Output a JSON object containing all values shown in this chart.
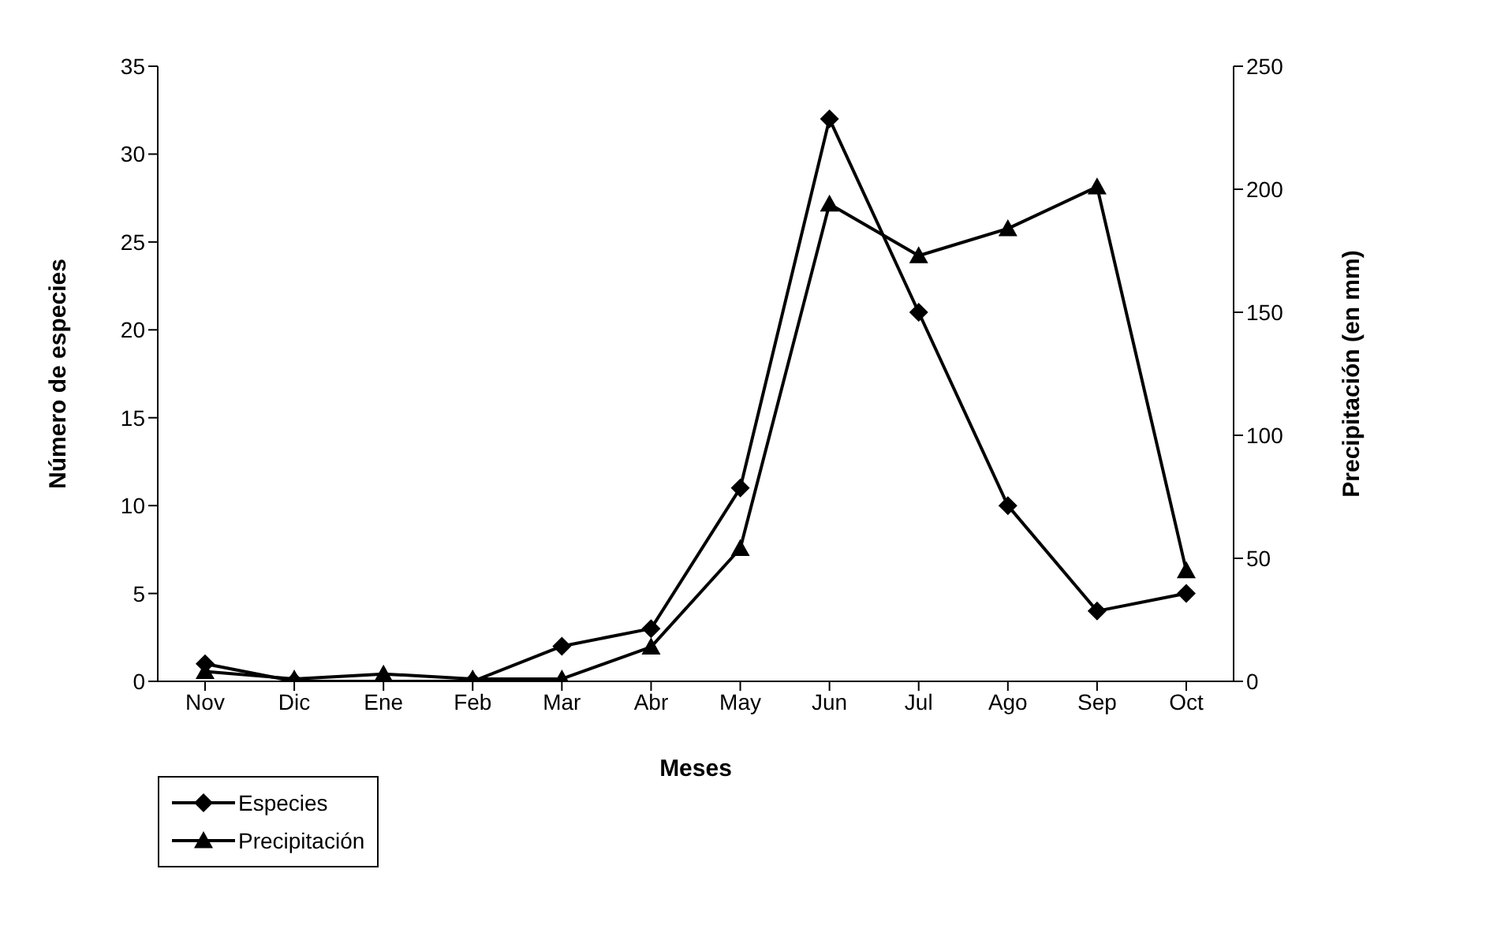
{
  "chart_data": {
    "type": "line",
    "xlabel": "Meses",
    "ylabel": "Número de especies",
    "y2label": "Precipitación (en mm)",
    "categories": [
      "Nov",
      "Dic",
      "Ene",
      "Feb",
      "Mar",
      "Abr",
      "May",
      "Jun",
      "Jul",
      "Ago",
      "Sep",
      "Oct"
    ],
    "series": [
      {
        "name": "Especies",
        "color": "#000000",
        "marker": "diamond",
        "values": [
          1,
          0,
          0,
          0,
          2,
          3,
          11,
          32,
          21,
          10,
          4,
          5
        ]
      },
      {
        "name": "Precipitación",
        "color": "#000000",
        "marker": "triangle",
        "axis": "y2",
        "values": [
          4,
          1,
          3,
          1,
          1,
          14,
          54,
          194,
          173,
          184,
          201,
          45
        ]
      }
    ],
    "ylim": [
      0,
      35
    ],
    "yticks": [
      0,
      5,
      10,
      15,
      20,
      25,
      30,
      35
    ],
    "y2lim": [
      0,
      250
    ],
    "y2ticks": [
      0,
      50,
      100,
      150,
      200,
      250
    ],
    "grid": false,
    "legend": "bottom left"
  }
}
